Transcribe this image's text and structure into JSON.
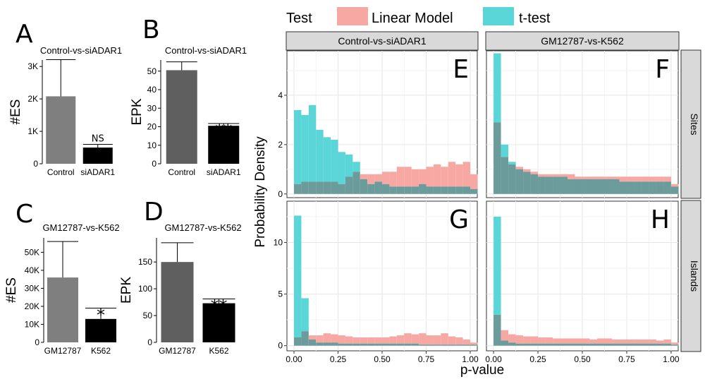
{
  "legend": {
    "title": "Test",
    "items": [
      {
        "label": "Linear Model",
        "color": "#F8A8A3"
      },
      {
        "label": "t-test",
        "color": "#5BD6D8"
      }
    ],
    "overlap_color": "#6C9B9B"
  },
  "bar_colors": {
    "first": "#7F7F7F",
    "second": "#000000"
  },
  "bar_colors_epk": {
    "first": "#5F5F5F",
    "second": "#000000"
  },
  "facet": {
    "columns": [
      "Control-vs-siADAR1",
      "GM12787-vs-K562"
    ],
    "rows": [
      "Sites",
      "Islands"
    ],
    "xlabel": "p-value",
    "ylabel": "Probability Density",
    "xticks": [
      "0.00",
      "0.25",
      "0.50",
      "0.75",
      "1.00"
    ]
  },
  "chart_data": [
    {
      "id": "A",
      "type": "bar",
      "letter": "A",
      "title": "Control-vs-siADAR1",
      "categories": [
        "Control",
        "siADAR1"
      ],
      "values": [
        2080,
        500
      ],
      "errors": [
        1130,
        100
      ],
      "ylabel": "#ES",
      "ylim": [
        0,
        3200
      ],
      "yticks": [
        0,
        1000,
        2000,
        3000
      ],
      "yticklabels": [
        "0",
        "1K",
        "2K",
        "3K"
      ],
      "annotation": "NS"
    },
    {
      "id": "B",
      "type": "bar",
      "letter": "B",
      "title": "Control-vs-siADAR1",
      "categories": [
        "Control",
        "siADAR1"
      ],
      "values": [
        50.5,
        20.5
      ],
      "errors": [
        4.5,
        1.2
      ],
      "ylabel": "EPK",
      "ylim": [
        0,
        56
      ],
      "yticks": [
        0,
        10,
        20,
        30,
        40,
        50
      ],
      "yticklabels": [
        "0",
        "10",
        "20",
        "30",
        "40",
        "50"
      ],
      "annotation": "**"
    },
    {
      "id": "C",
      "type": "bar",
      "letter": "C",
      "title": "GM12787-vs-K562",
      "categories": [
        "GM12787",
        "K562"
      ],
      "values": [
        36000,
        13000
      ],
      "errors": [
        20000,
        6000
      ],
      "ylabel": "#ES",
      "ylim": [
        0,
        58000
      ],
      "yticks": [
        0,
        10000,
        20000,
        30000,
        40000,
        50000
      ],
      "yticklabels": [
        "0",
        "10K",
        "20K",
        "30K",
        "40K",
        "50K"
      ],
      "annotation": "*"
    },
    {
      "id": "D",
      "type": "bar",
      "letter": "D",
      "title": "GM12787-vs-K562",
      "categories": [
        "GM12787",
        "K562"
      ],
      "values": [
        150,
        73
      ],
      "errors": [
        36,
        8
      ],
      "ylabel": "EPK",
      "ylim": [
        0,
        195
      ],
      "yticks": [
        0,
        50,
        100,
        150
      ],
      "yticklabels": [
        "0",
        "50",
        "100",
        "150"
      ],
      "annotation": "**"
    },
    {
      "id": "E",
      "type": "histogram",
      "letter": "E",
      "column": "Control-vs-siADAR1",
      "row": "Sites",
      "xlim": [
        -0.04,
        1.04
      ],
      "ylim": [
        -0.15,
        5.8
      ],
      "yticks": [
        0,
        2,
        4
      ],
      "yticklabels": [
        "0",
        "2",
        "4"
      ],
      "bin_width": 0.04167,
      "series": [
        {
          "name": "Linear Model",
          "values": [
            0.4,
            0.5,
            0.5,
            0.5,
            0.5,
            0.5,
            0.4,
            0.7,
            0.9,
            0.8,
            0.8,
            0.8,
            0.9,
            0.9,
            1.1,
            1.1,
            1.0,
            1.0,
            1.1,
            1.2,
            1.1,
            1.3,
            1.2,
            1.3,
            0.8
          ]
        },
        {
          "name": "t-test",
          "values": [
            3.4,
            3.2,
            3.6,
            2.6,
            2.3,
            2.2,
            1.7,
            1.6,
            1.3,
            0.6,
            0.4,
            0.5,
            0.4,
            0.3,
            0.3,
            0.3,
            0.3,
            0.4,
            0.3,
            0.3,
            0.3,
            0.3,
            0.3,
            0.3,
            0.2
          ]
        }
      ]
    },
    {
      "id": "F",
      "type": "histogram",
      "letter": "F",
      "column": "GM12787-vs-K562",
      "row": "Sites",
      "xlim": [
        -0.04,
        1.04
      ],
      "ylim": [
        -0.15,
        5.8
      ],
      "yticks": [
        0,
        2,
        4
      ],
      "yticklabels": [
        "0",
        "2",
        "4"
      ],
      "bin_width": 0.04167,
      "series": [
        {
          "name": "Linear Model",
          "values": [
            2.9,
            1.5,
            1.2,
            1.1,
            1.0,
            0.9,
            0.8,
            0.8,
            0.8,
            0.8,
            0.8,
            0.7,
            0.7,
            0.7,
            0.7,
            0.7,
            0.7,
            0.7,
            0.7,
            0.7,
            0.7,
            0.7,
            0.7,
            0.7,
            0.4
          ]
        },
        {
          "name": "t-test",
          "values": [
            5.7,
            2.0,
            1.3,
            1.0,
            0.9,
            0.8,
            0.7,
            0.7,
            0.7,
            0.7,
            0.6,
            0.6,
            0.6,
            0.6,
            0.6,
            0.6,
            0.6,
            0.5,
            0.5,
            0.5,
            0.5,
            0.5,
            0.5,
            0.5,
            0.3
          ]
        }
      ]
    },
    {
      "id": "G",
      "type": "histogram",
      "letter": "G",
      "column": "Control-vs-siADAR1",
      "row": "Islands",
      "xlim": [
        -0.04,
        1.04
      ],
      "ylim": [
        -0.5,
        14
      ],
      "yticks": [
        0,
        5,
        10
      ],
      "yticklabels": [
        "0",
        "5",
        "10"
      ],
      "bin_width": 0.04167,
      "series": [
        {
          "name": "Linear Model",
          "values": [
            0.8,
            1.4,
            1.0,
            1.0,
            1.2,
            1.1,
            1.0,
            0.9,
            0.8,
            0.8,
            0.8,
            0.8,
            0.8,
            0.9,
            1.0,
            1.2,
            1.1,
            1.2,
            1.0,
            1.0,
            1.2,
            0.9,
            0.8,
            0.6,
            0.3
          ]
        },
        {
          "name": "t-test",
          "values": [
            12.6,
            4.6,
            0.6,
            0.3,
            0.3,
            0.3,
            0.2,
            0.2,
            0.2,
            0.2,
            0.2,
            0.2,
            0.2,
            0.2,
            0.2,
            0.2,
            0.2,
            0.1,
            0.1,
            0.1,
            0.1,
            0.1,
            0.1,
            0.1,
            0.1
          ]
        }
      ]
    },
    {
      "id": "H",
      "type": "histogram",
      "letter": "H",
      "column": "GM12787-vs-K562",
      "row": "Islands",
      "xlim": [
        -0.04,
        1.04
      ],
      "ylim": [
        -0.5,
        14
      ],
      "yticks": [
        0,
        5,
        10
      ],
      "yticklabels": [
        "0",
        "5",
        "10"
      ],
      "bin_width": 0.04167,
      "series": [
        {
          "name": "Linear Model",
          "values": [
            3.0,
            1.5,
            1.1,
            1.0,
            0.9,
            0.9,
            0.8,
            0.8,
            0.7,
            0.7,
            0.7,
            0.7,
            0.7,
            0.6,
            0.7,
            0.7,
            0.6,
            0.6,
            0.6,
            0.6,
            0.6,
            0.6,
            0.5,
            0.6,
            0.3
          ]
        },
        {
          "name": "t-test",
          "values": [
            12.5,
            0.5,
            0.3,
            0.2,
            0.2,
            0.2,
            0.2,
            0.2,
            0.2,
            0.2,
            0.2,
            0.2,
            0.2,
            0.2,
            0.2,
            0.2,
            0.2,
            0.2,
            0.2,
            0.2,
            0.2,
            0.2,
            0.2,
            0.2,
            0.1
          ]
        }
      ]
    }
  ]
}
